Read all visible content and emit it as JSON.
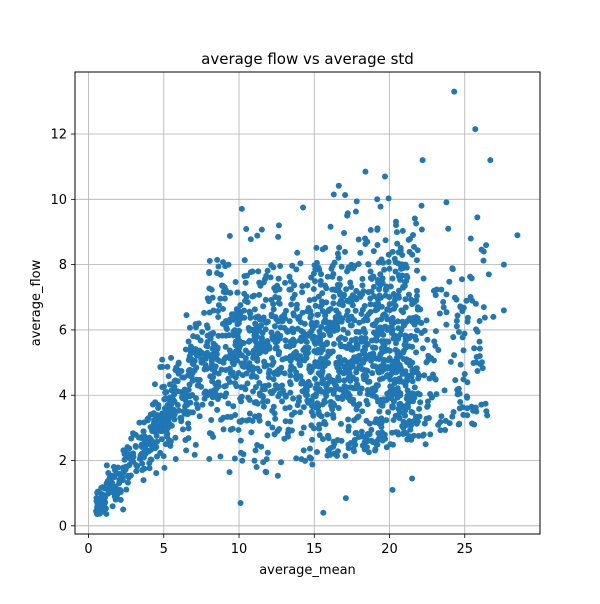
{
  "chart_data": {
    "type": "scatter",
    "title": "average flow vs average std",
    "xlabel": "average_mean",
    "ylabel": "average_flow",
    "xlim": [
      -0.9,
      30.0
    ],
    "ylim": [
      -0.25,
      13.9
    ],
    "x_ticks": [
      0,
      5,
      10,
      15,
      20,
      25
    ],
    "y_ticks": [
      0,
      2,
      4,
      6,
      8,
      10,
      12
    ],
    "grid": true,
    "marker_color": "#1f77b4",
    "highlighted_points": [
      {
        "x": 0.5,
        "y": 0.45
      },
      {
        "x": 0.8,
        "y": 0.85
      },
      {
        "x": 1.2,
        "y": 1.3
      },
      {
        "x": 1.6,
        "y": 0.6
      },
      {
        "x": 2.3,
        "y": 0.5
      },
      {
        "x": 4.9,
        "y": 4.25
      },
      {
        "x": 9.3,
        "y": 8.0
      },
      {
        "x": 10.1,
        "y": 0.7
      },
      {
        "x": 12.6,
        "y": 8.85
      },
      {
        "x": 15.6,
        "y": 0.4
      },
      {
        "x": 16.3,
        "y": 10.15
      },
      {
        "x": 17.1,
        "y": 0.85
      },
      {
        "x": 18.4,
        "y": 10.85
      },
      {
        "x": 19.7,
        "y": 10.7
      },
      {
        "x": 20.2,
        "y": 1.1
      },
      {
        "x": 21.5,
        "y": 1.45
      },
      {
        "x": 22.2,
        "y": 11.2
      },
      {
        "x": 22.4,
        "y": 2.5
      },
      {
        "x": 23.9,
        "y": 9.1
      },
      {
        "x": 24.3,
        "y": 13.3
      },
      {
        "x": 24.6,
        "y": 4.2
      },
      {
        "x": 24.9,
        "y": 3.4
      },
      {
        "x": 25.4,
        "y": 8.8
      },
      {
        "x": 25.7,
        "y": 12.15
      },
      {
        "x": 26.0,
        "y": 5.2
      },
      {
        "x": 26.7,
        "y": 11.2
      },
      {
        "x": 26.6,
        "y": 7.7
      },
      {
        "x": 26.9,
        "y": 6.4
      },
      {
        "x": 27.6,
        "y": 6.6
      },
      {
        "x": 27.6,
        "y": 8.0
      },
      {
        "x": 28.5,
        "y": 8.9
      }
    ]
  }
}
